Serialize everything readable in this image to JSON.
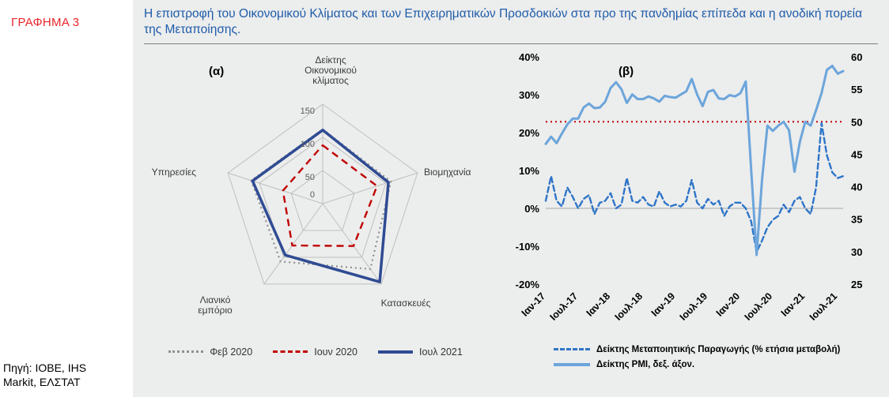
{
  "sidebar": {
    "figure_label": "ΓΡΑΦΗΜΑ 3",
    "source": "Πηγή: ΙΟΒΕ, IHS Markit, ΕΛΣΤΑΤ"
  },
  "title": "Η επιστροφή του Οικονομικού Κλίματος και των Επιχειρηματικών Προσδοκιών στα προ της πανδημίας επίπεδα και η ανοδική πορεία της Μεταποίησης.",
  "colors": {
    "figure_label": "#E8262C",
    "title": "#1F5CA9",
    "panel_background": "#ECEDED",
    "grid": "#BFBFBF",
    "zero_line": "#A6A6A6"
  },
  "chart_data": [
    {
      "type": "radar",
      "panel_label": "(α)",
      "axes": [
        "Δείκτης Οικονομικού κλίματος",
        "Βιομηχανία",
        "Κατασκευές",
        "Λιανικό εμπόριο",
        "Υπηρεσίες"
      ],
      "ring_values": [
        0,
        50,
        100,
        150
      ],
      "max": 150,
      "series": [
        {
          "name": "Φεβ 2020",
          "style": "dotted",
          "color": "#8F8F8F",
          "values": [
            112,
            108,
            122,
            108,
            113
          ]
        },
        {
          "name": "Ιουν 2020",
          "style": "dashed",
          "color": "#C00000",
          "values": [
            88,
            86,
            79,
            78,
            63
          ]
        },
        {
          "name": "Ιουλ 2021",
          "style": "solid",
          "color": "#2F4B93",
          "values": [
            111,
            104,
            146,
            96,
            111
          ]
        }
      ]
    },
    {
      "type": "line",
      "panel_label": "(β)",
      "x_labels": [
        "Ιαν-17",
        "Ιουλ-17",
        "Ιαν-18",
        "Ιουλ-18",
        "Ιαν-19",
        "Ιουλ-19",
        "Ιαν-20",
        "Ιουλ-20",
        "Ιαν-21",
        "Ιουλ-21"
      ],
      "points_per_label": 6,
      "left_axis": {
        "min": -20,
        "max": 40,
        "tick_step": 10,
        "tick_labels": [
          "40%",
          "30%",
          "20%",
          "10%",
          "0%",
          "-10%",
          "-20%"
        ]
      },
      "right_axis": {
        "min": 25,
        "max": 60,
        "tick_step": 5,
        "tick_labels": [
          "60",
          "55",
          "50",
          "45",
          "40",
          "35",
          "30",
          "25"
        ]
      },
      "reference_line": {
        "axis": "right",
        "value": 50,
        "color": "#C00000",
        "style": "dotted"
      },
      "series": [
        {
          "name": "Δείκτης Μεταποιητικής Παραγωγής (% ετήσια μεταβολή)",
          "axis": "left",
          "style": "dashed",
          "color": "#2E75C8",
          "values": [
            2.0,
            8.5,
            2.0,
            0.5,
            5.5,
            3.0,
            0.0,
            2.5,
            3.5,
            -1.5,
            1.5,
            2.0,
            4.0,
            0.0,
            1.0,
            8.0,
            2.0,
            1.5,
            3.0,
            1.0,
            0.5,
            4.5,
            1.5,
            0.5,
            1.0,
            0.5,
            2.0,
            7.5,
            1.5,
            0.0,
            2.5,
            1.0,
            2.0,
            -2.0,
            0.5,
            1.5,
            1.5,
            0.0,
            -3.5,
            -11.5,
            -8.5,
            -5.0,
            -3.0,
            -2.0,
            1.0,
            -1.0,
            2.0,
            3.0,
            0.0,
            -1.5,
            5.5,
            22.5,
            14.0,
            9.5,
            8.0,
            8.5
          ]
        },
        {
          "name": "Δείκτης PMI, δεξ. άξον.",
          "axis": "right",
          "style": "solid",
          "color": "#6CA5DB",
          "values": [
            46.6,
            47.7,
            46.7,
            48.2,
            49.6,
            50.5,
            50.5,
            52.2,
            52.8,
            52.1,
            52.2,
            53.1,
            55.2,
            56.1,
            55.0,
            52.9,
            54.2,
            53.5,
            53.5,
            53.9,
            53.6,
            53.1,
            54.0,
            53.8,
            53.7,
            54.2,
            54.7,
            56.6,
            54.2,
            52.4,
            54.6,
            54.9,
            53.6,
            53.5,
            54.1,
            53.9,
            54.4,
            56.2,
            42.5,
            29.5,
            41.1,
            49.4,
            48.6,
            49.4,
            50.0,
            48.7,
            42.3,
            46.9,
            50.0,
            49.4,
            51.8,
            54.4,
            58.0,
            58.6,
            57.4,
            57.8
          ]
        }
      ]
    }
  ]
}
